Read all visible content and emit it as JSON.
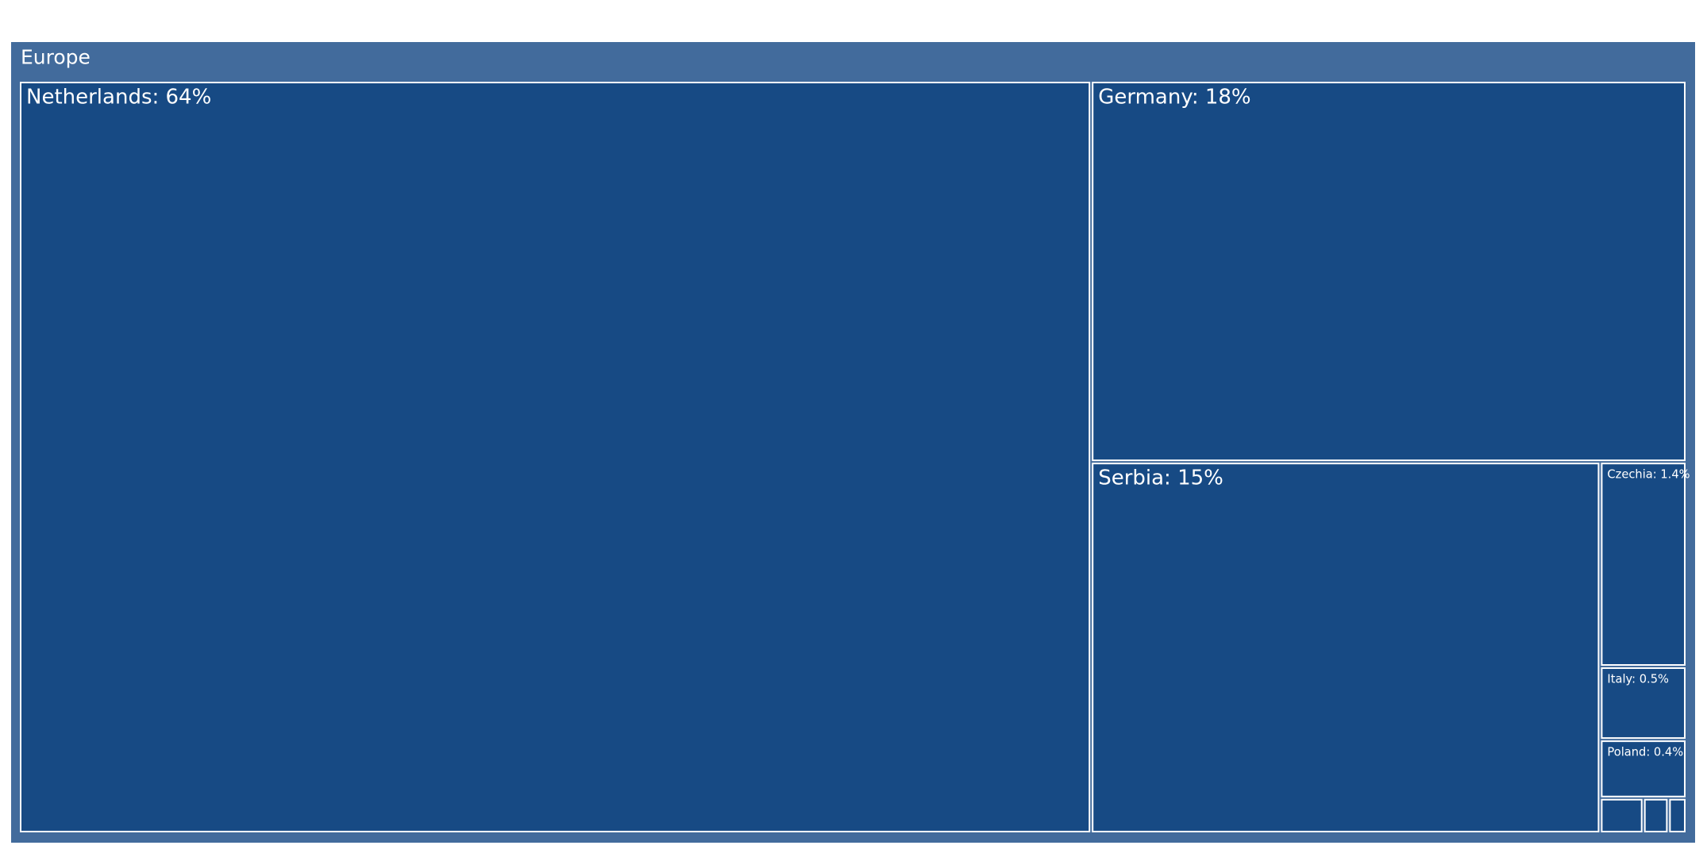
{
  "chart_data": {
    "type": "treemap",
    "root": "Europe",
    "root_color": "#426b9c",
    "color": "#174a84",
    "labels": [
      "Netherlands: 64%",
      "Germany: 18%",
      "Serbia: 15%",
      "Czechia: 1.4%",
      "Italy: 0.5%",
      "Poland: 0.4%",
      null,
      null,
      null
    ],
    "values": [
      64,
      18,
      15,
      1.4,
      0.5,
      0.4,
      0.12,
      0.07,
      0.05
    ]
  }
}
